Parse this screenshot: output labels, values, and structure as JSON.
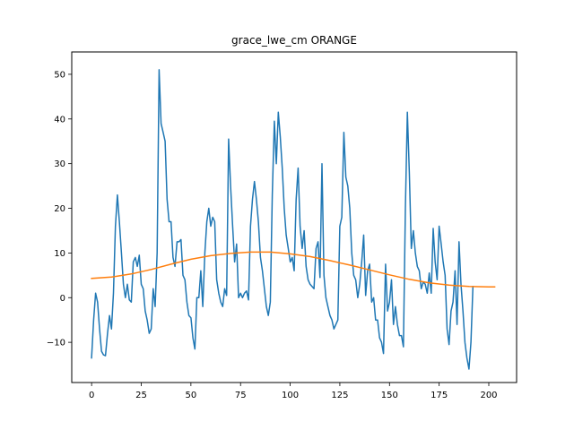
{
  "chart_data": {
    "type": "line",
    "title": "grace_lwe_cm ORANGE",
    "xlabel": "",
    "ylabel": "",
    "xlim": [
      -10,
      214
    ],
    "ylim": [
      -19,
      55
    ],
    "grid": false,
    "x_ticks": [
      0,
      25,
      50,
      75,
      100,
      125,
      150,
      175,
      200
    ],
    "y_ticks": [
      -10,
      0,
      10,
      20,
      30,
      40,
      50
    ],
    "series": [
      {
        "color": "#1f77b4",
        "points": [
          [
            0,
            -13.5
          ],
          [
            1,
            -5
          ],
          [
            2,
            1
          ],
          [
            3,
            -1
          ],
          [
            4,
            -7
          ],
          [
            5,
            -12
          ],
          [
            6,
            -12.8
          ],
          [
            7,
            -13
          ],
          [
            8,
            -8
          ],
          [
            9,
            -4
          ],
          [
            10,
            -7
          ],
          [
            11,
            1
          ],
          [
            12,
            16
          ],
          [
            13,
            23
          ],
          [
            14,
            17
          ],
          [
            15,
            10
          ],
          [
            16,
            3
          ],
          [
            17,
            0
          ],
          [
            18,
            3
          ],
          [
            19,
            -0.5
          ],
          [
            20,
            -1
          ],
          [
            21,
            8
          ],
          [
            22,
            9
          ],
          [
            23,
            7
          ],
          [
            24,
            9.5
          ],
          [
            25,
            3
          ],
          [
            26,
            2
          ],
          [
            27,
            -3
          ],
          [
            28,
            -5
          ],
          [
            29,
            -8
          ],
          [
            30,
            -7
          ],
          [
            31,
            2
          ],
          [
            32,
            -2
          ],
          [
            33,
            10
          ],
          [
            34,
            51
          ],
          [
            35,
            39
          ],
          [
            36,
            37
          ],
          [
            37,
            35
          ],
          [
            38,
            22
          ],
          [
            39,
            17
          ],
          [
            40,
            17
          ],
          [
            41,
            9
          ],
          [
            42,
            7
          ],
          [
            43,
            12.5
          ],
          [
            44,
            12.5
          ],
          [
            45,
            13
          ],
          [
            46,
            5
          ],
          [
            47,
            4
          ],
          [
            48,
            -1
          ],
          [
            49,
            -4
          ],
          [
            50,
            -4.5
          ],
          [
            51,
            -9
          ],
          [
            52,
            -11.5
          ],
          [
            53,
            0
          ],
          [
            54,
            0
          ],
          [
            55,
            6
          ],
          [
            56,
            -2
          ],
          [
            57,
            10
          ],
          [
            58,
            17
          ],
          [
            59,
            20
          ],
          [
            60,
            16
          ],
          [
            61,
            18
          ],
          [
            62,
            17
          ],
          [
            63,
            4
          ],
          [
            64,
            1
          ],
          [
            65,
            -1
          ],
          [
            66,
            -2
          ],
          [
            67,
            2
          ],
          [
            68,
            0.5
          ],
          [
            69,
            35.5
          ],
          [
            70,
            25
          ],
          [
            71,
            16
          ],
          [
            72,
            8
          ],
          [
            73,
            12
          ],
          [
            74,
            0
          ],
          [
            75,
            1
          ],
          [
            76,
            0
          ],
          [
            77,
            1
          ],
          [
            78,
            1.5
          ],
          [
            79,
            -0.5
          ],
          [
            80,
            16
          ],
          [
            81,
            22
          ],
          [
            82,
            26
          ],
          [
            83,
            22
          ],
          [
            84,
            17
          ],
          [
            85,
            9
          ],
          [
            86,
            6
          ],
          [
            87,
            2
          ],
          [
            88,
            -2
          ],
          [
            89,
            -4
          ],
          [
            90,
            -1
          ],
          [
            91,
            23
          ],
          [
            92,
            39.5
          ],
          [
            93,
            30
          ],
          [
            94,
            41.5
          ],
          [
            95,
            36
          ],
          [
            96,
            29
          ],
          [
            97,
            20
          ],
          [
            98,
            14
          ],
          [
            99,
            11
          ],
          [
            100,
            8
          ],
          [
            101,
            9
          ],
          [
            102,
            6
          ],
          [
            103,
            22
          ],
          [
            104,
            29
          ],
          [
            105,
            16
          ],
          [
            106,
            11
          ],
          [
            107,
            15
          ],
          [
            108,
            7
          ],
          [
            109,
            4
          ],
          [
            110,
            3
          ],
          [
            111,
            2.5
          ],
          [
            112,
            2
          ],
          [
            113,
            11
          ],
          [
            114,
            12.5
          ],
          [
            115,
            4.5
          ],
          [
            116,
            30
          ],
          [
            117,
            5
          ],
          [
            118,
            0
          ],
          [
            119,
            -2
          ],
          [
            120,
            -4
          ],
          [
            121,
            -5
          ],
          [
            122,
            -7
          ],
          [
            123,
            -6
          ],
          [
            124,
            -5
          ],
          [
            125,
            16
          ],
          [
            126,
            18
          ],
          [
            127,
            37
          ],
          [
            128,
            27
          ],
          [
            129,
            25
          ],
          [
            130,
            20
          ],
          [
            131,
            10
          ],
          [
            132,
            5
          ],
          [
            133,
            4
          ],
          [
            134,
            0
          ],
          [
            135,
            3
          ],
          [
            136,
            8
          ],
          [
            137,
            14
          ],
          [
            138,
            0.5
          ],
          [
            139,
            6
          ],
          [
            140,
            7.5
          ],
          [
            141,
            -1
          ],
          [
            142,
            0
          ],
          [
            143,
            -5
          ],
          [
            144,
            -5
          ],
          [
            145,
            -9
          ],
          [
            146,
            -10
          ],
          [
            147,
            -12.5
          ],
          [
            148,
            7.5
          ],
          [
            149,
            -3
          ],
          [
            150,
            -1
          ],
          [
            151,
            4
          ],
          [
            152,
            -6
          ],
          [
            153,
            -2
          ],
          [
            154,
            -6
          ],
          [
            155,
            -8.5
          ],
          [
            156,
            -8.5
          ],
          [
            157,
            -11
          ],
          [
            158,
            20
          ],
          [
            159,
            41.5
          ],
          [
            160,
            28
          ],
          [
            161,
            11
          ],
          [
            162,
            15
          ],
          [
            163,
            10
          ],
          [
            164,
            7
          ],
          [
            165,
            6
          ],
          [
            166,
            2
          ],
          [
            167,
            3.5
          ],
          [
            168,
            3
          ],
          [
            169,
            1
          ],
          [
            170,
            5.5
          ],
          [
            171,
            1
          ],
          [
            172,
            15.5
          ],
          [
            173,
            8
          ],
          [
            174,
            4
          ],
          [
            175,
            16
          ],
          [
            176,
            12
          ],
          [
            177,
            8
          ],
          [
            178,
            5
          ],
          [
            179,
            -7
          ],
          [
            180,
            -10.5
          ],
          [
            181,
            -3
          ],
          [
            182,
            -1
          ],
          [
            183,
            6
          ],
          [
            184,
            -6
          ],
          [
            185,
            12.5
          ],
          [
            186,
            3
          ],
          [
            187,
            -3
          ],
          [
            188,
            -10
          ],
          [
            189,
            -13.5
          ],
          [
            190,
            -16
          ],
          [
            191,
            -10
          ],
          [
            192,
            2.5
          ]
        ]
      },
      {
        "color": "#ff7f0e",
        "points": [
          [
            0,
            4.3
          ],
          [
            10,
            4.6
          ],
          [
            20,
            5.3
          ],
          [
            30,
            6.3
          ],
          [
            40,
            7.5
          ],
          [
            50,
            8.6
          ],
          [
            60,
            9.4
          ],
          [
            70,
            9.9
          ],
          [
            80,
            10.2
          ],
          [
            90,
            10.2
          ],
          [
            100,
            9.8
          ],
          [
            110,
            9.2
          ],
          [
            120,
            8.3
          ],
          [
            130,
            7.3
          ],
          [
            140,
            6.2
          ],
          [
            150,
            5.1
          ],
          [
            160,
            4.1
          ],
          [
            170,
            3.3
          ],
          [
            180,
            2.8
          ],
          [
            190,
            2.5
          ],
          [
            200,
            2.4
          ],
          [
            203,
            2.4
          ]
        ]
      }
    ]
  }
}
